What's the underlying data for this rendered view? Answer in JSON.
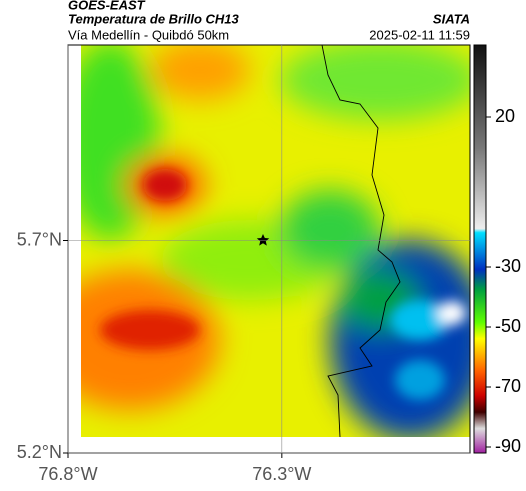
{
  "chart_data": {
    "type": "map",
    "title": "GOES-EAST",
    "subtitle": "Temperatura de Brillo CH13",
    "source": "SIATA",
    "region": "Vía Medellín - Quibdó 50km",
    "datetime": "2025-02-11 11:59",
    "xlim": [
      -76.8,
      -75.86
    ],
    "ylim": [
      5.2,
      6.16
    ],
    "xticks": [
      {
        "value": -76.8,
        "label": "76.8°W"
      },
      {
        "value": -76.3,
        "label": "76.3°W"
      }
    ],
    "yticks": [
      {
        "value": 5.2,
        "label": "5.2°N"
      },
      {
        "value": 5.7,
        "label": "5.7°N"
      }
    ],
    "grid": true,
    "colorbar": {
      "lim": [
        -92,
        44
      ],
      "ticks": [
        20,
        -30,
        -50,
        -70,
        -90
      ]
    }
  }
}
